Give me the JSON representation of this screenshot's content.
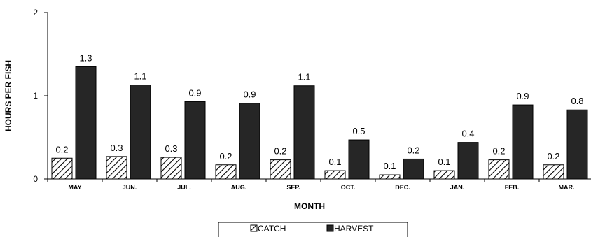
{
  "chart_data": {
    "type": "bar",
    "title": "",
    "xlabel": "MONTH",
    "ylabel": "HOURS PER FISH",
    "ylim": [
      0,
      2
    ],
    "yticks": [
      "0",
      "1",
      "2"
    ],
    "grid": false,
    "legend_position": "bottom",
    "categories": [
      "MAY",
      "JUN.",
      "JUL.",
      "AUG.",
      "SEP.",
      "OCT.",
      "DEC.",
      "JAN.",
      "FEB.",
      "MAR."
    ],
    "series": [
      {
        "name": "CATCH",
        "pattern": "diagonal-hatch",
        "color": "#000000",
        "values": [
          0.25,
          0.27,
          0.26,
          0.17,
          0.23,
          0.1,
          0.05,
          0.1,
          0.23,
          0.17
        ],
        "labels": [
          "0.2",
          "0.3",
          "0.3",
          "0.2",
          "0.2",
          "0.1",
          "0.1",
          "0.1",
          "0.2",
          "0.2"
        ]
      },
      {
        "name": "HARVEST",
        "pattern": "solid",
        "color": "#262626",
        "values": [
          1.35,
          1.13,
          0.93,
          0.91,
          1.12,
          0.47,
          0.24,
          0.44,
          0.89,
          0.83
        ],
        "labels": [
          "1.3",
          "1.1",
          "0.9",
          "0.9",
          "1.1",
          "0.5",
          "0.2",
          "0.4",
          "0.9",
          "0.8"
        ]
      }
    ]
  }
}
